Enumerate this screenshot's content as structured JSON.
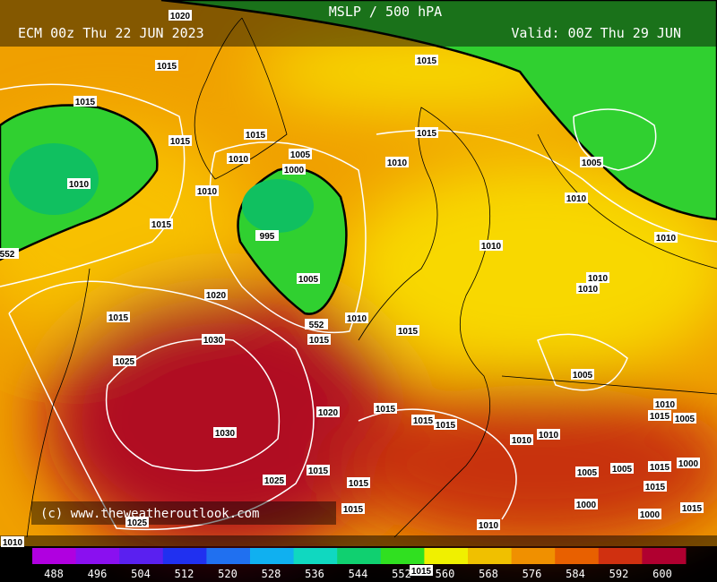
{
  "header": {
    "title": "MSLP / 500 hPA",
    "run": "ECM 00z Thu 22 JUN 2023",
    "valid": "Valid: 00Z Thu 29 JUN"
  },
  "credit": "(c) www.theweatheroutlook.com",
  "isobar_labels": [
    "1020",
    "1015",
    "1015",
    "1015",
    "1015",
    "1005",
    "1010",
    "1000",
    "1010",
    "1010",
    "1015",
    "995",
    "1005",
    "1020",
    "1015",
    "1010",
    "1015",
    "1030",
    "1025",
    "1015",
    "1015",
    "1010",
    "1005",
    "1010",
    "1010",
    "1010",
    "1010",
    "1010",
    "1015",
    "1005",
    "1020",
    "1015",
    "1015",
    "1015",
    "1030",
    "1010",
    "1015",
    "1005",
    "1010",
    "1010",
    "1015",
    "1025",
    "1015",
    "1005",
    "1005",
    "1015",
    "1000",
    "1015",
    "1000",
    "1000",
    "1015",
    "1015",
    "1010",
    "1025",
    "1010",
    "552",
    "552",
    "1015"
  ],
  "colorbar": {
    "ticks": [
      488,
      496,
      504,
      512,
      520,
      528,
      536,
      544,
      552,
      560,
      568,
      576,
      584,
      592,
      600
    ],
    "colors": [
      "#b000e0",
      "#8a10f0",
      "#5a20f0",
      "#2030f0",
      "#2070f0",
      "#10b0f0",
      "#10d8c0",
      "#10d070",
      "#30e020",
      "#f0f000",
      "#f0c000",
      "#f09000",
      "#e86000",
      "#d03010",
      "#b00030"
    ]
  }
}
